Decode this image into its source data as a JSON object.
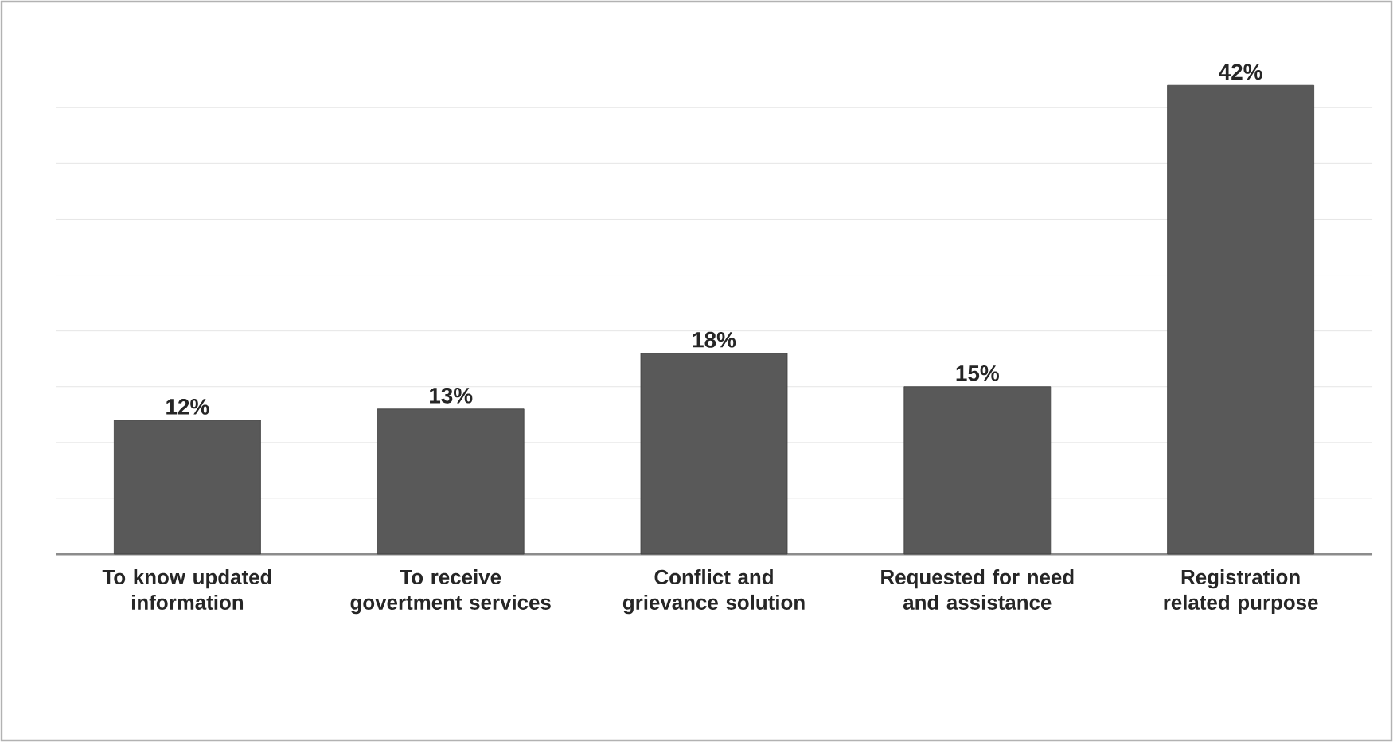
{
  "chart_data": {
    "type": "bar",
    "categories": [
      "To know updated information",
      "To receive govertment services",
      "Conflict and grievance solution",
      "Requested for need and assistance",
      "Registration related purpose"
    ],
    "values": [
      12,
      13,
      18,
      15,
      42
    ],
    "value_labels": [
      "12%",
      "13%",
      "18%",
      "15%",
      "42%"
    ],
    "color": "#595959",
    "tick_labels": "x",
    "grid": "y"
  }
}
